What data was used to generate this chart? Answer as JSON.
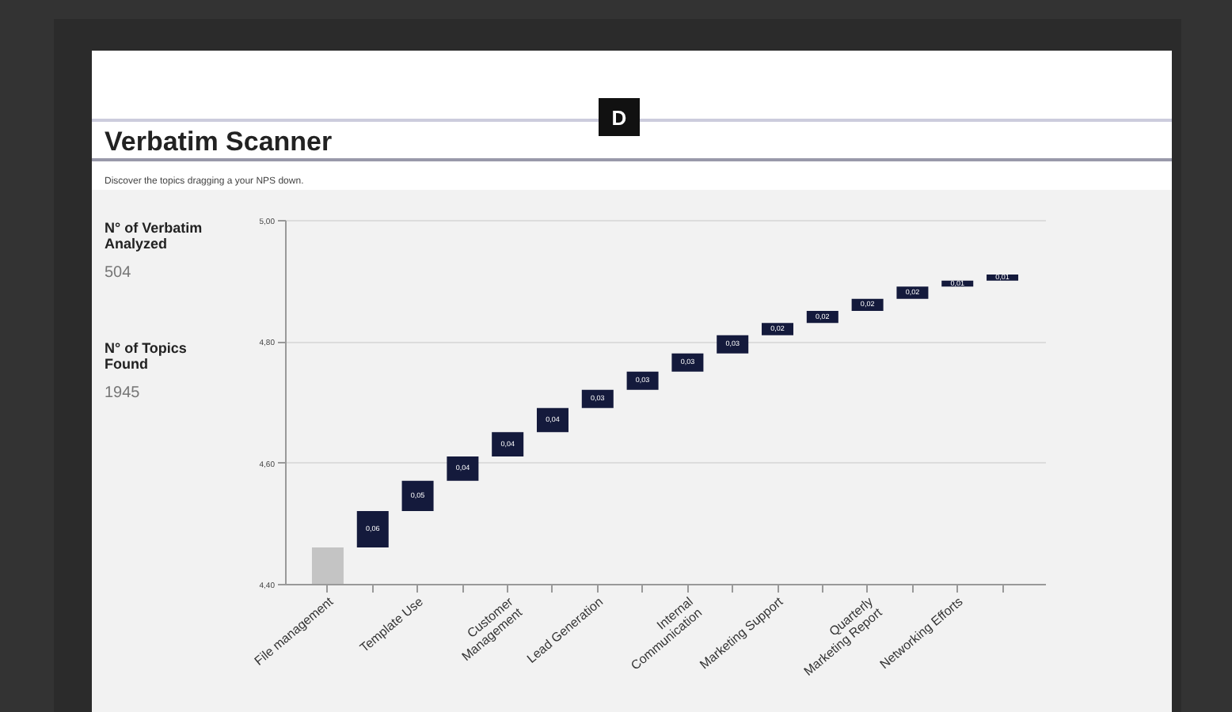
{
  "chart_data": {
    "type": "bar",
    "title": "Verbatim Scanner",
    "subtitle": "Discover the topics dragging a your NPS down.",
    "annotations": [
      "D",
      "N° of Verbatim Analyzed",
      "504",
      "N° of Topics Found",
      "1945"
    ],
    "categories": [
      "File management",
      null,
      "Template Use",
      null,
      "Customer\nManagement",
      null,
      "Lead Generation",
      null,
      "Internal\nCommunication",
      null,
      "Marketing Support",
      null,
      "Quarterly\nMarketing Report",
      null,
      "Networking Efforts",
      null
    ],
    "values": [
      4.46,
      0.06,
      0.05,
      0.04,
      0.04,
      0.04,
      0.03,
      0.03,
      0.03,
      0.03,
      0.02,
      0.02,
      0.02,
      0.02,
      0.01,
      0.01
    ],
    "base": [
      null,
      4.46,
      4.52,
      4.57,
      4.61,
      4.65,
      4.69,
      4.72,
      4.75,
      4.78,
      4.81,
      4.83,
      4.85,
      4.87,
      4.89,
      4.9
    ],
    "colors": [
      "#c4c4c4",
      "#141a3c",
      "#141a3c",
      "#141a3c",
      "#141a3c",
      "#141a3c",
      "#141a3c",
      "#141a3c",
      "#141a3c",
      "#141a3c",
      "#141a3c",
      "#141a3c",
      "#141a3c",
      "#141a3c",
      "#141a3c",
      "#141a3c"
    ],
    "value_labels": [
      null,
      "0,06",
      "0,05",
      "0,04",
      "0,04",
      "0,04",
      "0,03",
      "0,03",
      "0,03",
      "0,03",
      "0,02",
      "0,02",
      "0,02",
      "0,02",
      "0,01",
      "0,01"
    ],
    "ylim": [
      4.4,
      5.0
    ],
    "yticks": [
      {
        "value": 4.4,
        "label": "4,40"
      },
      {
        "value": 4.6,
        "label": "4,60"
      },
      {
        "value": 4.8,
        "label": "4,80"
      },
      {
        "value": 5.0,
        "label": "5,00"
      }
    ],
    "grid": "y"
  }
}
